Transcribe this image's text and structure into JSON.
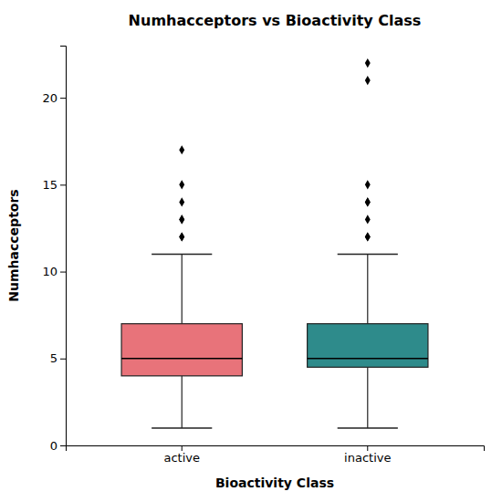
{
  "chart_data": {
    "type": "box",
    "title": "Numhacceptors vs Bioactivity Class",
    "xlabel": "Bioactivity Class",
    "ylabel": "Numhacceptors",
    "categories": [
      "active",
      "inactive"
    ],
    "boxes": [
      {
        "q1": 4,
        "median": 5,
        "q3": 7,
        "whisker_low": 1,
        "whisker_high": 11,
        "outliers": [
          12,
          12,
          13,
          13,
          14,
          15,
          17
        ]
      },
      {
        "q1": 4.5,
        "median": 5,
        "q3": 7,
        "whisker_low": 1,
        "whisker_high": 11,
        "outliers": [
          12,
          12,
          13,
          14,
          14,
          15,
          21,
          22
        ]
      }
    ],
    "colors": [
      "#E8737A",
      "#2E8B8B"
    ],
    "ylim": [
      0,
      23
    ],
    "yticks": [
      0,
      5,
      10,
      15,
      20
    ],
    "grid": false
  }
}
